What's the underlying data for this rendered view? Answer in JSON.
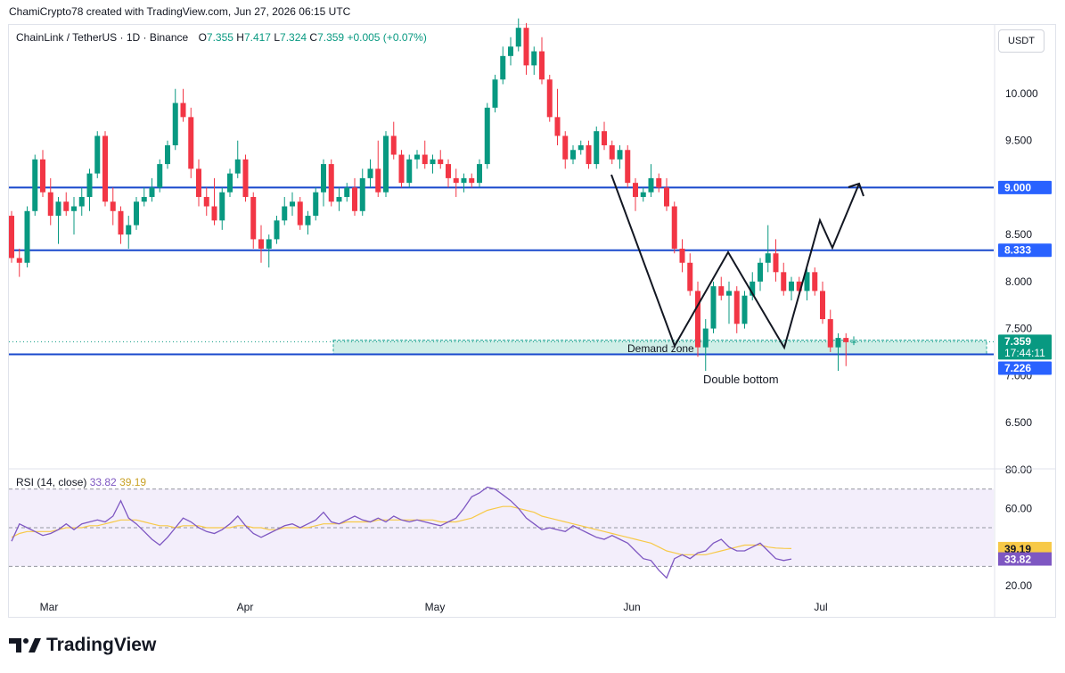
{
  "header": {
    "attribution": "ChamiCrypto78 created with TradingView.com, Jun 27, 2026 06:15 UTC"
  },
  "legend": {
    "symbol": "ChainLink / TetherUS · 1D · Binance",
    "open_label": "O",
    "open": "7.355",
    "high_label": "H",
    "high": "7.417",
    "low_label": "L",
    "low": "7.324",
    "close_label": "C",
    "close": "7.359",
    "change": "+0.005 (+0.07%)"
  },
  "currency_button": "USDT",
  "price_axis": {
    "ticks": [
      "10.000",
      "9.500",
      "9.000",
      "8.500",
      "8.000",
      "7.500",
      "7.000",
      "6.500"
    ],
    "badges": [
      {
        "label": "9.000",
        "color": "#2962ff"
      },
      {
        "label": "8.333",
        "color": "#2962ff"
      },
      {
        "label": "7.359",
        "color": "#089981",
        "sub": "17:44:11"
      },
      {
        "label": "7.226",
        "color": "#2962ff"
      }
    ]
  },
  "time_axis": {
    "labels": [
      "Mar",
      "Apr",
      "May",
      "Jun",
      "Jul"
    ]
  },
  "annotations": {
    "demand_zone": "Demand zone",
    "double_bottom": "Double bottom"
  },
  "rsi": {
    "title": "RSI (14, close)",
    "value": "33.82",
    "ma_value": "39.19",
    "ticks": [
      "80.00",
      "60.00",
      "20.00"
    ],
    "badge_rsi": "33.82",
    "badge_ma": "39.19",
    "colors": {
      "rsi": "#7e57c2",
      "ma": "#f7c948"
    }
  },
  "colors": {
    "up": "#089981",
    "down": "#f23645",
    "level_line": "#1848cc",
    "zone_fill": "#cfeee7",
    "zone_border": "#26a69a"
  },
  "chart_data": {
    "type": "candlestick",
    "interval": "1D",
    "ylim": [
      6.3,
      10.8
    ],
    "levels": [
      9.0,
      8.333,
      7.226
    ],
    "demand_zone": [
      7.226,
      7.3
    ],
    "last_price": 7.359,
    "candles": [
      {
        "o": 8.7,
        "h": 8.75,
        "l": 8.2,
        "c": 8.25
      },
      {
        "o": 8.25,
        "h": 8.35,
        "l": 8.05,
        "c": 8.2
      },
      {
        "o": 8.2,
        "h": 8.8,
        "l": 8.15,
        "c": 8.75
      },
      {
        "o": 8.75,
        "h": 9.35,
        "l": 8.7,
        "c": 9.3
      },
      {
        "o": 9.3,
        "h": 9.4,
        "l": 8.9,
        "c": 8.95
      },
      {
        "o": 8.95,
        "h": 9.1,
        "l": 8.6,
        "c": 8.7
      },
      {
        "o": 8.7,
        "h": 8.9,
        "l": 8.4,
        "c": 8.85
      },
      {
        "o": 8.85,
        "h": 8.95,
        "l": 8.7,
        "c": 8.75
      },
      {
        "o": 8.75,
        "h": 8.9,
        "l": 8.5,
        "c": 8.8
      },
      {
        "o": 8.8,
        "h": 9.0,
        "l": 8.7,
        "c": 8.9
      },
      {
        "o": 8.9,
        "h": 9.2,
        "l": 8.75,
        "c": 9.15
      },
      {
        "o": 9.15,
        "h": 9.6,
        "l": 9.1,
        "c": 9.55
      },
      {
        "o": 9.55,
        "h": 9.6,
        "l": 8.8,
        "c": 8.85
      },
      {
        "o": 8.85,
        "h": 9.0,
        "l": 8.6,
        "c": 8.75
      },
      {
        "o": 8.75,
        "h": 8.8,
        "l": 8.4,
        "c": 8.5
      },
      {
        "o": 8.5,
        "h": 8.7,
        "l": 8.35,
        "c": 8.6
      },
      {
        "o": 8.6,
        "h": 8.9,
        "l": 8.55,
        "c": 8.85
      },
      {
        "o": 8.85,
        "h": 9.0,
        "l": 8.8,
        "c": 8.9
      },
      {
        "o": 8.9,
        "h": 9.1,
        "l": 8.85,
        "c": 9.0
      },
      {
        "o": 9.0,
        "h": 9.3,
        "l": 8.95,
        "c": 9.25
      },
      {
        "o": 9.25,
        "h": 9.5,
        "l": 9.2,
        "c": 9.45
      },
      {
        "o": 9.45,
        "h": 10.05,
        "l": 9.4,
        "c": 9.9
      },
      {
        "o": 9.9,
        "h": 10.05,
        "l": 9.7,
        "c": 9.75
      },
      {
        "o": 9.75,
        "h": 9.85,
        "l": 9.1,
        "c": 9.2
      },
      {
        "o": 9.2,
        "h": 9.3,
        "l": 8.8,
        "c": 8.9
      },
      {
        "o": 8.9,
        "h": 9.0,
        "l": 8.7,
        "c": 8.8
      },
      {
        "o": 8.8,
        "h": 9.1,
        "l": 8.6,
        "c": 8.65
      },
      {
        "o": 8.65,
        "h": 9.0,
        "l": 8.55,
        "c": 8.95
      },
      {
        "o": 8.95,
        "h": 9.2,
        "l": 8.9,
        "c": 9.15
      },
      {
        "o": 9.15,
        "h": 9.5,
        "l": 9.1,
        "c": 9.3
      },
      {
        "o": 9.3,
        "h": 9.35,
        "l": 8.85,
        "c": 8.9
      },
      {
        "o": 8.9,
        "h": 8.95,
        "l": 8.35,
        "c": 8.45
      },
      {
        "o": 8.45,
        "h": 8.6,
        "l": 8.2,
        "c": 8.35
      },
      {
        "o": 8.35,
        "h": 8.5,
        "l": 8.15,
        "c": 8.45
      },
      {
        "o": 8.45,
        "h": 8.7,
        "l": 8.4,
        "c": 8.65
      },
      {
        "o": 8.65,
        "h": 8.9,
        "l": 8.6,
        "c": 8.8
      },
      {
        "o": 8.8,
        "h": 8.95,
        "l": 8.7,
        "c": 8.85
      },
      {
        "o": 8.85,
        "h": 8.9,
        "l": 8.55,
        "c": 8.6
      },
      {
        "o": 8.6,
        "h": 8.75,
        "l": 8.5,
        "c": 8.7
      },
      {
        "o": 8.7,
        "h": 9.0,
        "l": 8.65,
        "c": 8.95
      },
      {
        "o": 8.95,
        "h": 9.3,
        "l": 8.8,
        "c": 9.25
      },
      {
        "o": 9.25,
        "h": 9.3,
        "l": 8.8,
        "c": 8.85
      },
      {
        "o": 8.85,
        "h": 9.0,
        "l": 8.75,
        "c": 8.9
      },
      {
        "o": 8.9,
        "h": 9.05,
        "l": 8.85,
        "c": 9.0
      },
      {
        "o": 9.0,
        "h": 9.1,
        "l": 8.7,
        "c": 8.75
      },
      {
        "o": 8.75,
        "h": 9.2,
        "l": 8.7,
        "c": 9.1
      },
      {
        "o": 9.1,
        "h": 9.3,
        "l": 9.0,
        "c": 9.2
      },
      {
        "o": 9.2,
        "h": 9.5,
        "l": 8.9,
        "c": 8.95
      },
      {
        "o": 8.95,
        "h": 9.6,
        "l": 8.9,
        "c": 9.55
      },
      {
        "o": 9.55,
        "h": 9.7,
        "l": 9.3,
        "c": 9.35
      },
      {
        "o": 9.35,
        "h": 9.4,
        "l": 9.0,
        "c": 9.05
      },
      {
        "o": 9.05,
        "h": 9.35,
        "l": 9.0,
        "c": 9.3
      },
      {
        "o": 9.3,
        "h": 9.4,
        "l": 9.2,
        "c": 9.35
      },
      {
        "o": 9.35,
        "h": 9.5,
        "l": 9.2,
        "c": 9.25
      },
      {
        "o": 9.25,
        "h": 9.35,
        "l": 9.15,
        "c": 9.3
      },
      {
        "o": 9.3,
        "h": 9.4,
        "l": 9.2,
        "c": 9.25
      },
      {
        "o": 9.25,
        "h": 9.3,
        "l": 9.0,
        "c": 9.1
      },
      {
        "o": 9.1,
        "h": 9.2,
        "l": 8.9,
        "c": 9.05
      },
      {
        "o": 9.05,
        "h": 9.15,
        "l": 8.95,
        "c": 9.1
      },
      {
        "o": 9.1,
        "h": 9.15,
        "l": 9.0,
        "c": 9.05
      },
      {
        "o": 9.05,
        "h": 9.3,
        "l": 9.0,
        "c": 9.25
      },
      {
        "o": 9.25,
        "h": 9.9,
        "l": 9.2,
        "c": 9.85
      },
      {
        "o": 9.85,
        "h": 10.2,
        "l": 9.8,
        "c": 10.15
      },
      {
        "o": 10.15,
        "h": 10.5,
        "l": 10.1,
        "c": 10.4
      },
      {
        "o": 10.4,
        "h": 10.6,
        "l": 10.3,
        "c": 10.5
      },
      {
        "o": 10.5,
        "h": 10.8,
        "l": 10.45,
        "c": 10.7
      },
      {
        "o": 10.7,
        "h": 10.75,
        "l": 10.2,
        "c": 10.3
      },
      {
        "o": 10.3,
        "h": 10.5,
        "l": 10.2,
        "c": 10.45
      },
      {
        "o": 10.45,
        "h": 10.6,
        "l": 10.1,
        "c": 10.15
      },
      {
        "o": 10.15,
        "h": 10.2,
        "l": 9.7,
        "c": 9.75
      },
      {
        "o": 9.75,
        "h": 10.05,
        "l": 9.45,
        "c": 9.55
      },
      {
        "o": 9.55,
        "h": 9.6,
        "l": 9.2,
        "c": 9.3
      },
      {
        "o": 9.3,
        "h": 9.45,
        "l": 9.25,
        "c": 9.4
      },
      {
        "o": 9.4,
        "h": 9.5,
        "l": 9.35,
        "c": 9.45
      },
      {
        "o": 9.45,
        "h": 9.5,
        "l": 9.2,
        "c": 9.25
      },
      {
        "o": 9.25,
        "h": 9.65,
        "l": 9.2,
        "c": 9.6
      },
      {
        "o": 9.6,
        "h": 9.7,
        "l": 9.4,
        "c": 9.45
      },
      {
        "o": 9.45,
        "h": 9.5,
        "l": 9.25,
        "c": 9.3
      },
      {
        "o": 9.3,
        "h": 9.45,
        "l": 9.2,
        "c": 9.4
      },
      {
        "o": 9.4,
        "h": 9.45,
        "l": 9.0,
        "c": 9.05
      },
      {
        "o": 9.05,
        "h": 9.1,
        "l": 8.75,
        "c": 8.9
      },
      {
        "o": 8.9,
        "h": 9.0,
        "l": 8.85,
        "c": 8.95
      },
      {
        "o": 8.95,
        "h": 9.25,
        "l": 8.9,
        "c": 9.1
      },
      {
        "o": 9.1,
        "h": 9.15,
        "l": 8.95,
        "c": 9.0
      },
      {
        "o": 9.0,
        "h": 9.1,
        "l": 8.75,
        "c": 8.8
      },
      {
        "o": 8.8,
        "h": 8.85,
        "l": 8.3,
        "c": 8.35
      },
      {
        "o": 8.35,
        "h": 8.45,
        "l": 8.1,
        "c": 8.2
      },
      {
        "o": 8.2,
        "h": 8.3,
        "l": 7.85,
        "c": 7.9
      },
      {
        "o": 7.9,
        "h": 8.0,
        "l": 7.2,
        "c": 7.3
      },
      {
        "o": 7.3,
        "h": 7.6,
        "l": 7.05,
        "c": 7.5
      },
      {
        "o": 7.5,
        "h": 8.0,
        "l": 7.45,
        "c": 7.95
      },
      {
        "o": 7.95,
        "h": 8.05,
        "l": 7.8,
        "c": 7.85
      },
      {
        "o": 7.85,
        "h": 8.0,
        "l": 7.55,
        "c": 7.9
      },
      {
        "o": 7.9,
        "h": 7.95,
        "l": 7.45,
        "c": 7.55
      },
      {
        "o": 7.55,
        "h": 7.9,
        "l": 7.5,
        "c": 7.85
      },
      {
        "o": 7.85,
        "h": 8.1,
        "l": 7.8,
        "c": 8.0
      },
      {
        "o": 8.0,
        "h": 8.25,
        "l": 7.9,
        "c": 8.2
      },
      {
        "o": 8.2,
        "h": 8.6,
        "l": 8.1,
        "c": 8.3
      },
      {
        "o": 8.3,
        "h": 8.45,
        "l": 8.0,
        "c": 8.1
      },
      {
        "o": 8.1,
        "h": 8.2,
        "l": 7.85,
        "c": 7.9
      },
      {
        "o": 7.9,
        "h": 8.05,
        "l": 7.8,
        "c": 8.0
      },
      {
        "o": 8.0,
        "h": 8.05,
        "l": 7.85,
        "c": 7.9
      },
      {
        "o": 7.9,
        "h": 8.15,
        "l": 7.8,
        "c": 8.1
      },
      {
        "o": 8.1,
        "h": 8.15,
        "l": 7.85,
        "c": 7.9
      },
      {
        "o": 7.9,
        "h": 8.0,
        "l": 7.55,
        "c": 7.6
      },
      {
        "o": 7.6,
        "h": 7.7,
        "l": 7.25,
        "c": 7.3
      },
      {
        "o": 7.3,
        "h": 7.45,
        "l": 7.05,
        "c": 7.4
      },
      {
        "o": 7.4,
        "h": 7.45,
        "l": 7.1,
        "c": 7.355
      },
      {
        "o": 7.355,
        "h": 7.417,
        "l": 7.324,
        "c": 7.359
      }
    ],
    "rsi_series": [
      43,
      52,
      50,
      48,
      46,
      47,
      49,
      52,
      49,
      52,
      53,
      54,
      53,
      56,
      64,
      55,
      52,
      48,
      44,
      41,
      45,
      50,
      55,
      53,
      50,
      48,
      47,
      49,
      52,
      56,
      51,
      47,
      45,
      47,
      49,
      51,
      52,
      50,
      52,
      54,
      58,
      53,
      52,
      54,
      56,
      54,
      53,
      55,
      53,
      56,
      54,
      53,
      54,
      53,
      52,
      51,
      53,
      55,
      60,
      66,
      68,
      71,
      70,
      67,
      64,
      60,
      55,
      52,
      49,
      50,
      49,
      48,
      51,
      49,
      47,
      45,
      44,
      46,
      44,
      42,
      38,
      34,
      33,
      28,
      24,
      34,
      36,
      34,
      37,
      38,
      42,
      44,
      40,
      38,
      38,
      40,
      42,
      38,
      34,
      33,
      33.82
    ],
    "rsi_ma_series": [
      45,
      47,
      48,
      48,
      48,
      48,
      49,
      50,
      50,
      50,
      51,
      51,
      52,
      53,
      54,
      54,
      54,
      53,
      52,
      51,
      51,
      50,
      51,
      51,
      51,
      50,
      50,
      50,
      50,
      51,
      51,
      50,
      50,
      49,
      49,
      50,
      50,
      50,
      50,
      51,
      52,
      52,
      52,
      53,
      53,
      53,
      53,
      54,
      54,
      54,
      54,
      54,
      54,
      54,
      54,
      53,
      53,
      53,
      54,
      55,
      57,
      59,
      60,
      61,
      61,
      60,
      59,
      58,
      56,
      55,
      54,
      53,
      52,
      51,
      50,
      49,
      48,
      47,
      46,
      45,
      44,
      43,
      42,
      40,
      38,
      37,
      36,
      36,
      36,
      36,
      37,
      38,
      39,
      40,
      41,
      41,
      41,
      40,
      39.5,
      39.3,
      39.19
    ],
    "rsi_ylim": [
      15,
      85
    ],
    "rsi_bands": [
      70,
      50,
      30
    ]
  }
}
